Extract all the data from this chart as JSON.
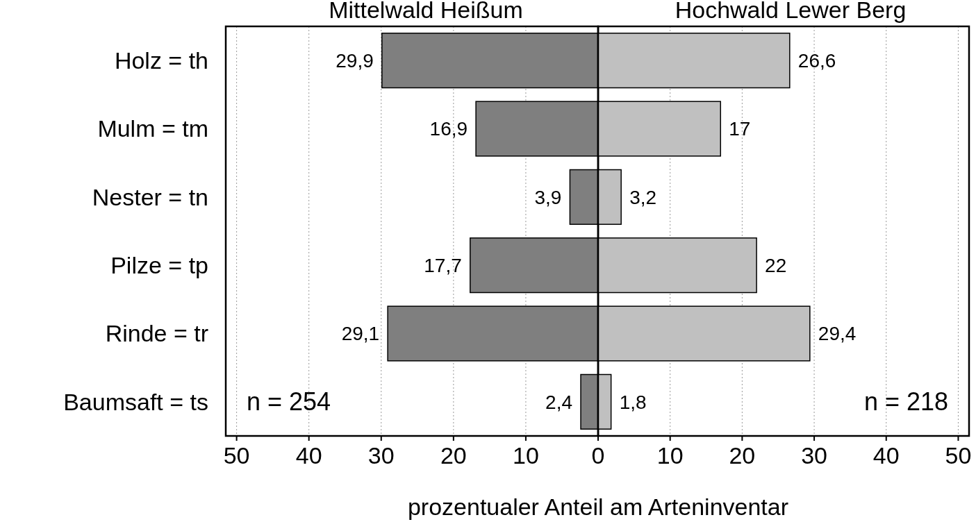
{
  "chart_data": [
    {
      "type": "bar",
      "orientation": "horizontal",
      "title": "Mittelwald Heißum",
      "xlabel": "prozentualer Anteil am Arteninventar",
      "categories": [
        "Holz = th",
        "Mulm = tm",
        "Nester = tn",
        "Pilze = tp",
        "Rinde = tr",
        "Baumsaft = ts"
      ],
      "series": [
        {
          "color": "#7f7f7f",
          "values": [
            29.9,
            16.9,
            3.9,
            17.7,
            29.1,
            2.4
          ],
          "value_labels": [
            "29,9",
            "16,9",
            "3,9",
            "17,7",
            "29,1",
            "2,4"
          ]
        }
      ],
      "xlim": [
        51.5,
        0
      ],
      "xticks": [
        50,
        40,
        30,
        20,
        10,
        0
      ],
      "grid": "x",
      "annotations": [
        "n = 254"
      ]
    },
    {
      "type": "bar",
      "orientation": "horizontal",
      "title": "Hochwald Lewer Berg",
      "categories": [
        null,
        null,
        null,
        null,
        null,
        null
      ],
      "series": [
        {
          "color": "#c0c0c0",
          "values": [
            26.6,
            17,
            3.2,
            22,
            29.4,
            1.8
          ],
          "value_labels": [
            "26,6",
            "17",
            "3,2",
            "22",
            "29,4",
            "1,8"
          ]
        }
      ],
      "xlim": [
        0,
        51.5
      ],
      "xticks": [
        10,
        20,
        30,
        40,
        50
      ],
      "grid": "x",
      "tick_labels": "x",
      "annotations": [
        "n = 218"
      ]
    }
  ]
}
